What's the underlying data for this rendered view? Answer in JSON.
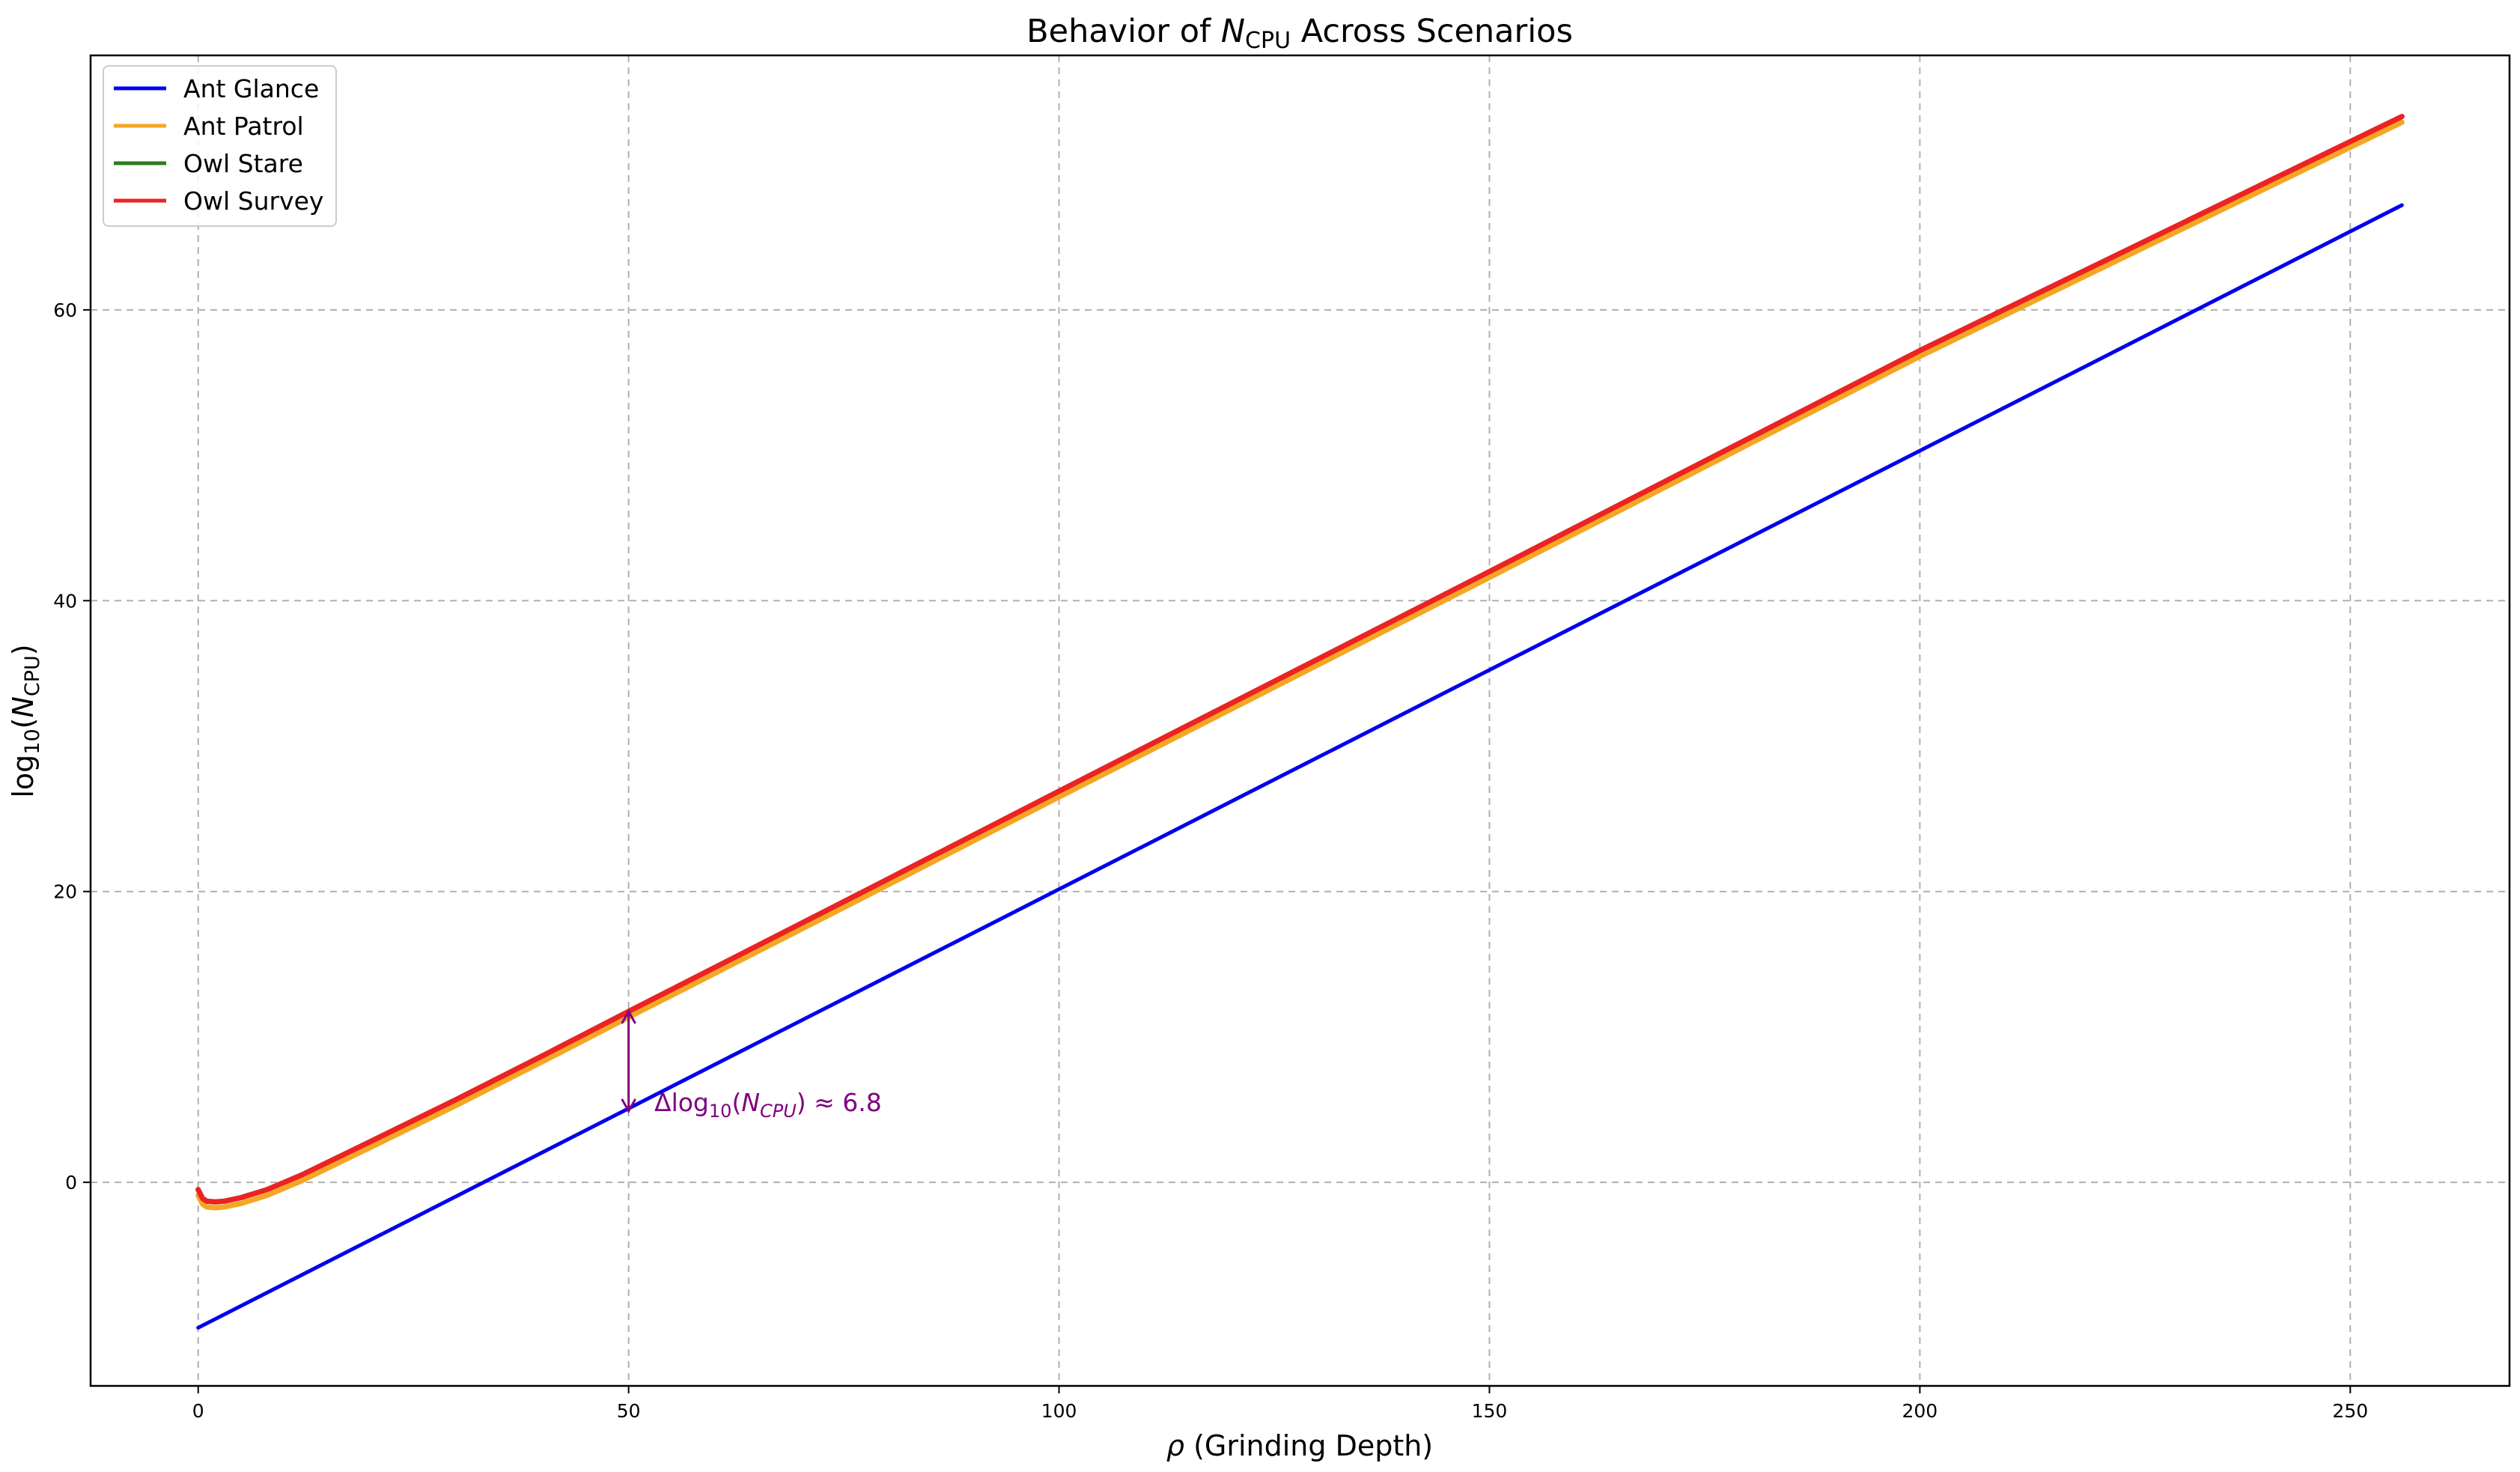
{
  "chart_data": {
    "type": "line",
    "title": {
      "prefix": "Behavior of ",
      "var_main": "N",
      "var_sub": "CPU",
      "suffix": " Across Scenarios"
    },
    "xlabel": {
      "symbol": "ρ",
      "text": " (Grinding Depth)"
    },
    "ylabel": {
      "func": "log",
      "func_sub": "10",
      "open": "(",
      "var_main": "N",
      "var_sub": "CPU",
      "close": ")"
    },
    "xlim": [
      -12.5,
      268.5
    ],
    "ylim": [
      -14,
      77.5
    ],
    "xticks": [
      0,
      50,
      100,
      150,
      200,
      250
    ],
    "yticks": [
      0,
      20,
      40,
      60
    ],
    "grid": true,
    "legend_position": "top-left",
    "series": [
      {
        "name": "Ant Glance",
        "color": "#0000ee",
        "points": [
          [
            0,
            -10.0
          ],
          [
            256,
            67.2
          ]
        ]
      },
      {
        "name": "Ant Patrol",
        "color": "#f5a623",
        "points": [
          [
            0,
            -0.9
          ],
          [
            0.5,
            -1.5
          ],
          [
            1,
            -1.7
          ],
          [
            2,
            -1.75
          ],
          [
            3,
            -1.7
          ],
          [
            5,
            -1.45
          ],
          [
            8,
            -0.9
          ],
          [
            12,
            0.1
          ],
          [
            20,
            2.4
          ],
          [
            30,
            5.3
          ],
          [
            40,
            8.3
          ],
          [
            50,
            11.35
          ],
          [
            75,
            18.9
          ],
          [
            100,
            26.5
          ],
          [
            150,
            41.6
          ],
          [
            200,
            56.8
          ],
          [
            256,
            72.9
          ]
        ]
      },
      {
        "name": "Owl Stare",
        "color": "#2e7d1e",
        "points": [
          [
            0,
            -0.5
          ],
          [
            0.5,
            -1.1
          ],
          [
            1,
            -1.3
          ],
          [
            2,
            -1.35
          ],
          [
            3,
            -1.3
          ],
          [
            5,
            -1.05
          ],
          [
            8,
            -0.5
          ],
          [
            12,
            0.5
          ],
          [
            20,
            2.8
          ],
          [
            30,
            5.7
          ],
          [
            40,
            8.7
          ],
          [
            50,
            11.75
          ],
          [
            75,
            19.3
          ],
          [
            100,
            26.9
          ],
          [
            150,
            42.0
          ],
          [
            200,
            57.2
          ],
          [
            256,
            73.3
          ]
        ]
      },
      {
        "name": "Owl Survey",
        "color": "#ee2222",
        "points": [
          [
            0,
            -0.5
          ],
          [
            0.5,
            -1.1
          ],
          [
            1,
            -1.3
          ],
          [
            2,
            -1.35
          ],
          [
            3,
            -1.3
          ],
          [
            5,
            -1.05
          ],
          [
            8,
            -0.5
          ],
          [
            12,
            0.5
          ],
          [
            20,
            2.8
          ],
          [
            30,
            5.7
          ],
          [
            40,
            8.7
          ],
          [
            50,
            11.75
          ],
          [
            75,
            19.3
          ],
          [
            100,
            26.9
          ],
          [
            150,
            42.0
          ],
          [
            200,
            57.2
          ],
          [
            256,
            73.3
          ]
        ]
      }
    ],
    "annotation": {
      "x": 50,
      "y_from": 11.75,
      "y_to": 4.9,
      "color": "#800080",
      "text": {
        "delta": "Δ",
        "func": "log",
        "func_sub": "10",
        "open": "(",
        "var_main": "N",
        "var_sub": "CPU",
        "close": ")",
        "approx": " ≈ 6.8"
      }
    }
  }
}
